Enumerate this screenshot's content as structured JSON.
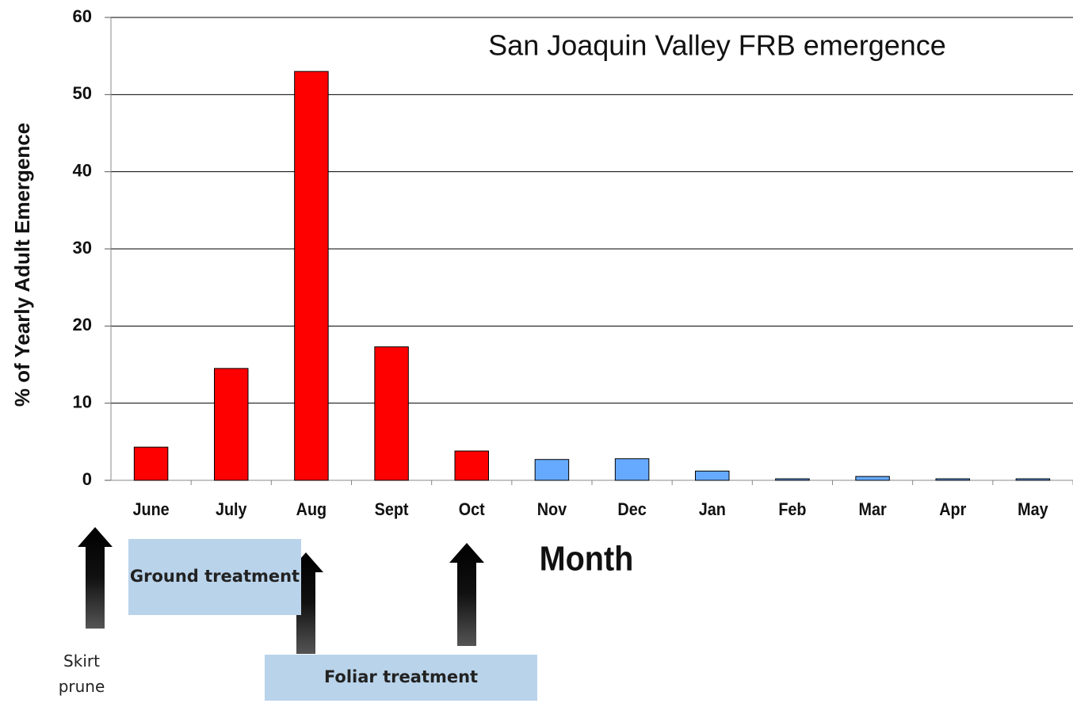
{
  "chart_data": {
    "type": "bar",
    "title": "San Joaquin Valley FRB emergence",
    "x_label": "Month",
    "y_label": "% of Yearly Adult Emergence",
    "categories": [
      "June",
      "July",
      "Aug",
      "Sept",
      "Oct",
      "Nov",
      "Dec",
      "Jan",
      "Feb",
      "Mar",
      "Apr",
      "May"
    ],
    "values": [
      4.3,
      14.5,
      53,
      17.3,
      3.8,
      2.7,
      2.8,
      1.2,
      0.2,
      0.5,
      0.2,
      0.2
    ],
    "colors": [
      "#ff0000",
      "#ff0000",
      "#ff0000",
      "#ff0000",
      "#ff0000",
      "#66aaff",
      "#66aaff",
      "#66aaff",
      "#66aaff",
      "#66aaff",
      "#66aaff",
      "#66aaff"
    ],
    "ylim": [
      0,
      60
    ],
    "yticks": [
      0,
      10,
      20,
      30,
      40,
      50,
      60
    ],
    "grid": true,
    "annotations": [
      "Ground treatment",
      "Foliar treatment",
      "Skirt prune"
    ]
  }
}
